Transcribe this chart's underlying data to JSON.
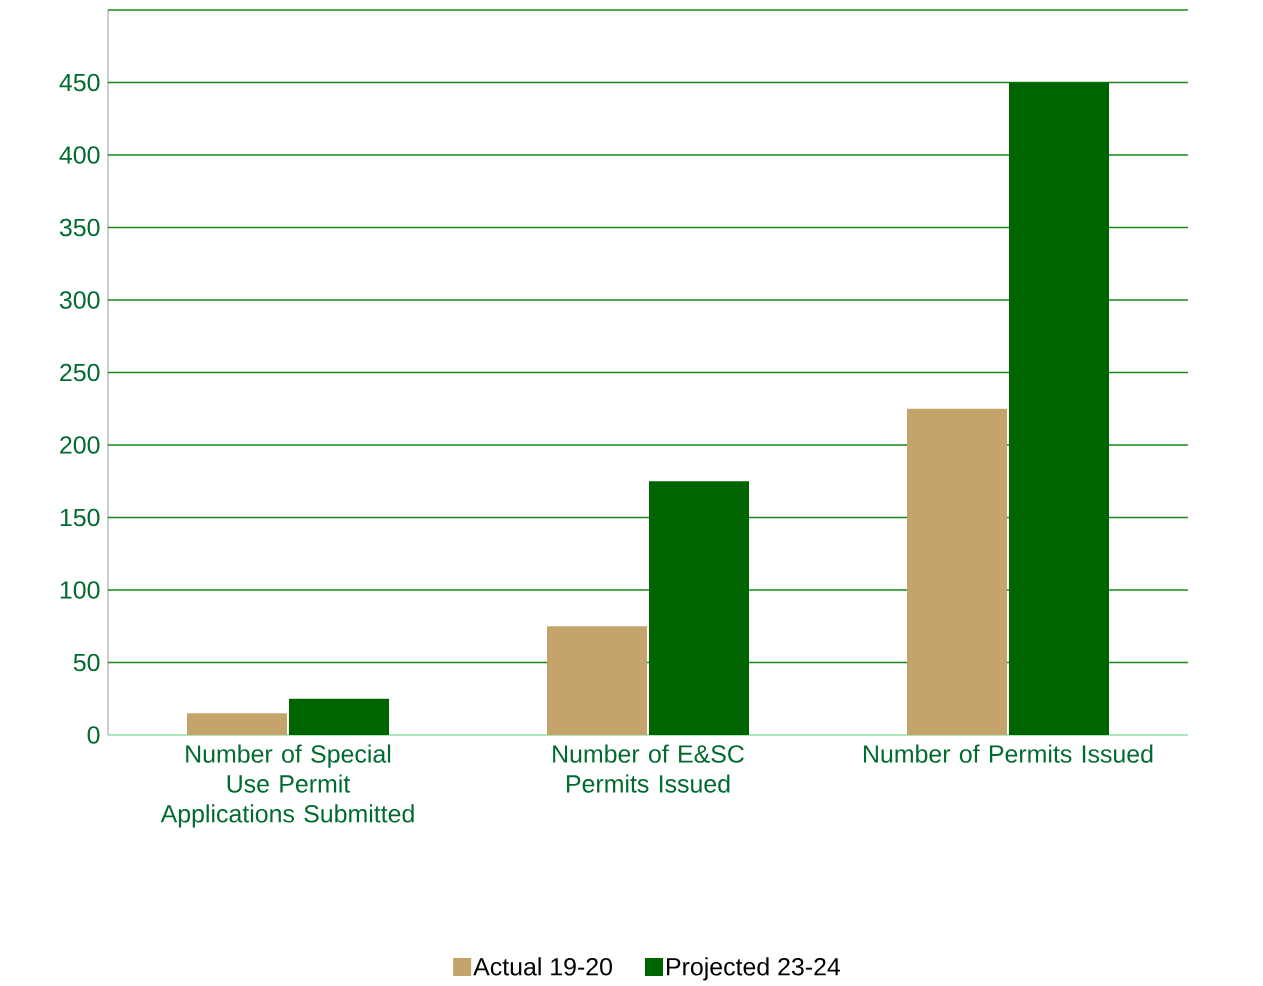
{
  "chart_data": {
    "type": "bar",
    "categories": [
      "Number of Special Use Permit Applications Submitted",
      "Number of E&SC Permits Issued",
      "Number of Permits Issued"
    ],
    "series": [
      {
        "name": "Actual 19-20",
        "color": "#c4a46b",
        "values": [
          15,
          75,
          225
        ]
      },
      {
        "name": "Projected 23-24",
        "color": "#006400",
        "values": [
          25,
          175,
          450
        ]
      }
    ],
    "ylim": [
      0,
      500
    ],
    "yticks": [
      0,
      50,
      100,
      150,
      200,
      250,
      300,
      350,
      400,
      450,
      {
        "value": 500,
        "label": null
      }
    ],
    "grid": "y",
    "legend": "bottom"
  }
}
